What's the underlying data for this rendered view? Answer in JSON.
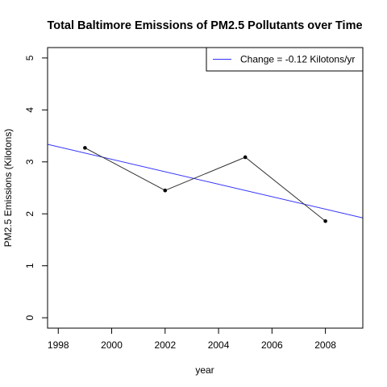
{
  "chart_data": {
    "type": "line",
    "title": "Total Baltimore Emissions of PM2.5 Pollutants over Time",
    "xlabel": "year",
    "ylabel": "PM2.5 Emissions (Kilotons)",
    "xlim": [
      1997.6,
      2009.4
    ],
    "ylim": [
      -0.2,
      5.2
    ],
    "xticks": [
      1998,
      2000,
      2002,
      2004,
      2006,
      2008
    ],
    "yticks": [
      0,
      1,
      2,
      3,
      4,
      5
    ],
    "grid": false,
    "legend_position": "top-right",
    "series": [
      {
        "x": [
          1999,
          2002,
          2005,
          2008
        ],
        "y": [
          3.27,
          2.45,
          3.09,
          1.86
        ],
        "color": "#333333"
      }
    ],
    "trend_line": {
      "name": "Change =  -0.12 Kilotons/yr",
      "slope": -0.12,
      "intercept": 243.05,
      "color": "#3333ff"
    }
  }
}
